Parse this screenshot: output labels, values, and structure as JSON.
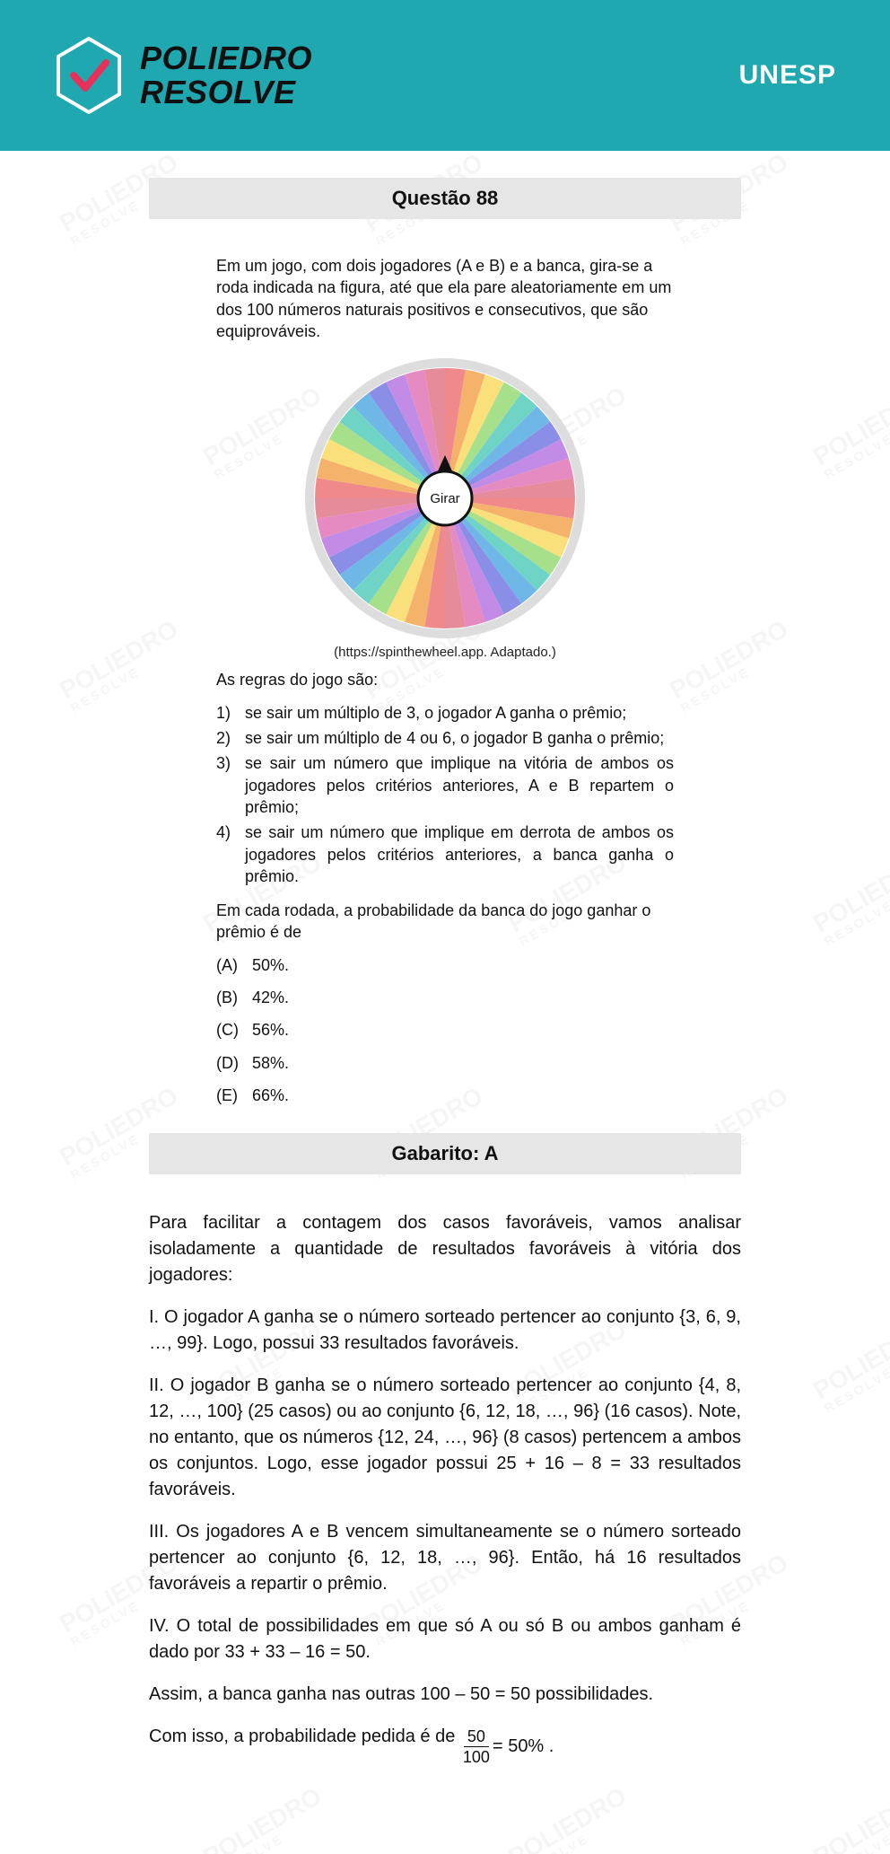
{
  "header": {
    "brand_line1": "POLIEDRO",
    "brand_line2": "RESOLVE",
    "exam": "UNESP",
    "colors": {
      "header_bg": "#1fa8b0",
      "check_stroke": "#e6325a",
      "hex_stroke": "#ffffff",
      "brand_text": "#111111"
    }
  },
  "question": {
    "title": "Questão 88",
    "intro": "Em um jogo, com dois jogadores (A e B) e a banca, gira-se a roda indicada na figura, até que ela pare aleatoriamente em um dos 100 números naturais positivos e consecutivos, que são equiprováveis.",
    "wheel": {
      "center_label": "Girar",
      "caption": "(https://spinthewheel.app. Adaptado.)",
      "segments": 40,
      "colors": [
        "#f08a8a",
        "#f5b26b",
        "#f9e07a",
        "#a7e08a",
        "#6fd3c6",
        "#6fb7e6",
        "#8b8ee6",
        "#c18be6",
        "#e68bc1",
        "#e68b9a"
      ],
      "outer_ring": "#dddddd",
      "center_fill": "#ffffff",
      "center_stroke": "#111111"
    },
    "rules_intro": "As regras do jogo são:",
    "rules": [
      {
        "n": "1)",
        "t": "se sair um múltiplo de 3, o jogador A ganha o prêmio;"
      },
      {
        "n": "2)",
        "t": "se sair um múltiplo de 4 ou 6, o jogador B ganha o prêmio;"
      },
      {
        "n": "3)",
        "t": "se sair um número que implique na vitória de ambos os jogadores pelos critérios anteriores, A e B repartem o prêmio;"
      },
      {
        "n": "4)",
        "t": "se sair um número que implique em derrota de ambos os jogadores pelos critérios anteriores, a banca ganha o prêmio."
      }
    ],
    "ask": "Em cada rodada, a probabilidade da banca do jogo ganhar o prêmio é de",
    "alternatives": [
      {
        "l": "(A)",
        "t": "50%."
      },
      {
        "l": "(B)",
        "t": "42%."
      },
      {
        "l": "(C)",
        "t": "56%."
      },
      {
        "l": "(D)",
        "t": "58%."
      },
      {
        "l": "(E)",
        "t": "66%."
      }
    ]
  },
  "answer": {
    "title": "Gabarito: A"
  },
  "solution": {
    "p1": "Para facilitar a contagem dos casos favoráveis, vamos analisar isoladamente a quantidade de resultados favoráveis à vitória dos jogadores:",
    "p2": "I. O jogador A ganha se o número sorteado pertencer ao conjunto {3, 6, 9, …, 99}. Logo, possui 33 resultados favoráveis.",
    "p3": "II. O jogador B ganha se o número sorteado pertencer ao conjunto {4, 8, 12, …, 100} (25 casos) ou ao conjunto {6, 12, 18, …, 96} (16 casos). Note, no entanto, que os números {12, 24, …, 96} (8 casos) pertencem a ambos os conjuntos. Logo, esse jogador possui 25 + 16 – 8 = 33 resultados favoráveis.",
    "p4": "III. Os jogadores A e B vencem simultaneamente se o número sorteado pertencer ao conjunto {6, 12, 18, …, 96}. Então, há 16 resultados favoráveis a repartir o prêmio.",
    "p5": "IV. O total de possibilidades em que só A ou só B ou ambos ganham é dado por 33 + 33 – 16 = 50.",
    "p6": "Assim, a banca ganha nas outras 100 – 50 = 50 possibilidades.",
    "p7_prefix": "Com isso, a probabilidade pedida é de ",
    "frac_num": "50",
    "frac_den": "100",
    "p7_suffix": " = 50% ."
  },
  "watermark": {
    "line1": "POLIEDRO",
    "line2": "RESOLVE"
  }
}
